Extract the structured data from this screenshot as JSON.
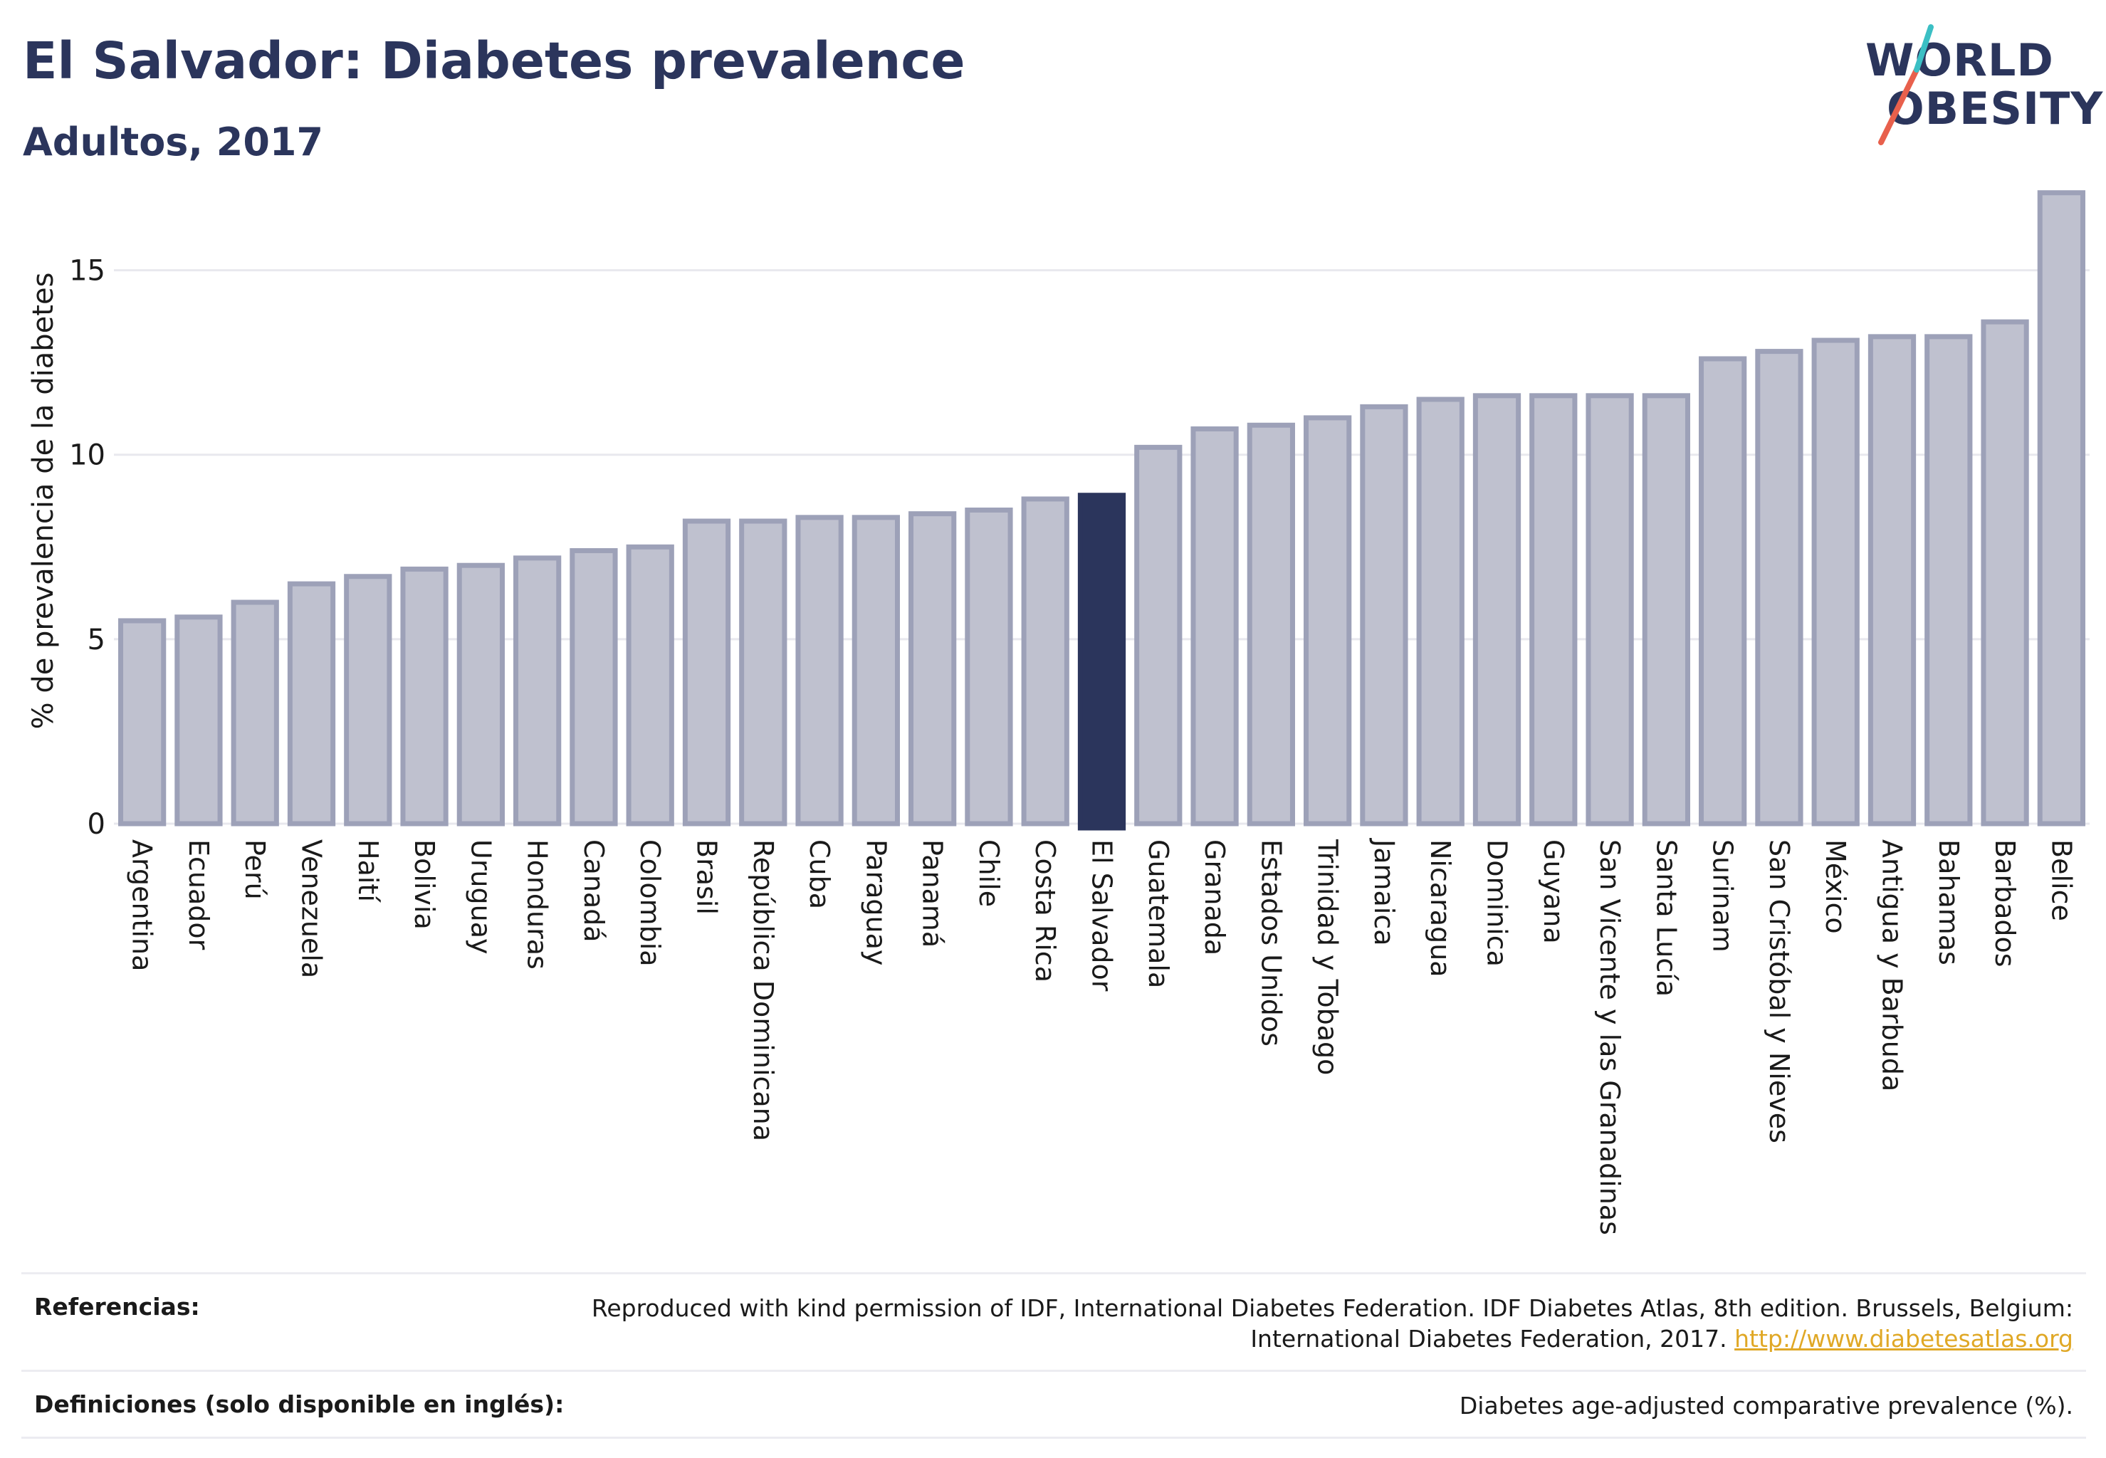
{
  "header": {
    "title": "El Salvador: Diabetes prevalence",
    "subtitle": "Adultos, 2017"
  },
  "logo": {
    "line1": "WORLD",
    "line2": "OBESITY",
    "slash_colors": [
      "#e8604c",
      "#3bbfc4"
    ]
  },
  "chart_data": {
    "type": "bar",
    "ylabel": "% de prevalencia de la diabetes",
    "xlabel": "",
    "ylim": [
      0,
      17.5
    ],
    "yticks": [
      0,
      5,
      10,
      15
    ],
    "grid": true,
    "highlight": "El Salvador",
    "colors": {
      "bar": "#bfc1cf",
      "bar_edge": "#9da1b8",
      "highlight": "#2b355c",
      "grid": "#e8e8ee"
    },
    "categories": [
      "Argentina",
      "Ecuador",
      "Perú",
      "Venezuela",
      "Haití",
      "Bolivia",
      "Uruguay",
      "Honduras",
      "Canadá",
      "Colombia",
      "Brasil",
      "República Dominicana",
      "Cuba",
      "Paraguay",
      "Panamá",
      "Chile",
      "Costa Rica",
      "El Salvador",
      "Guatemala",
      "Granada",
      "Estados Unidos",
      "Trinidad y Tobago",
      "Jamaica",
      "Nicaragua",
      "Dominica",
      "Guyana",
      "San Vicente y las Granadinas",
      "Santa Lucía",
      "Surinam",
      "San Cristóbal y Nieves",
      "México",
      "Antigua y Barbuda",
      "Bahamas",
      "Barbados",
      "Belice"
    ],
    "values": [
      5.5,
      5.6,
      6.0,
      6.5,
      6.7,
      6.9,
      7.0,
      7.2,
      7.4,
      7.5,
      8.2,
      8.2,
      8.3,
      8.3,
      8.4,
      8.5,
      8.8,
      8.9,
      10.2,
      10.7,
      10.8,
      11.0,
      11.3,
      11.5,
      11.6,
      11.6,
      11.6,
      11.6,
      12.6,
      12.8,
      13.1,
      13.2,
      13.2,
      13.6,
      17.1
    ]
  },
  "footer": {
    "references_label": "Referencias:",
    "references_text": "Reproduced with kind permission of IDF, International Diabetes Federation. IDF Diabetes Atlas, 8th edition. Brussels, Belgium: International Diabetes Federation, 2017.",
    "references_link": "http://www.diabetesatlas.org",
    "definitions_label": "Definiciones (solo disponible en inglés):",
    "definitions_text": "Diabetes age-adjusted comparative prevalence (%)."
  }
}
